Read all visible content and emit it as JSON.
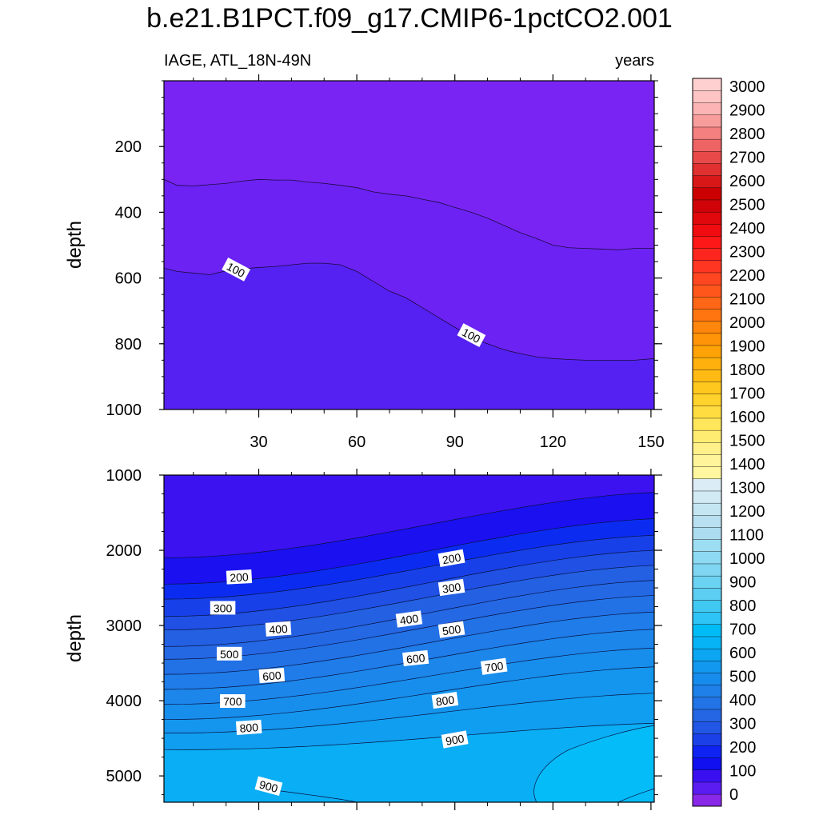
{
  "title": "b.e21.B1PCT.f09_g17.CMIP6-1pctCO2.001",
  "chart_data": [
    {
      "type": "contour",
      "panel": "upper",
      "left_label": "IAGE, ATL_18N-49N",
      "right_label": "years",
      "ylabel": "depth",
      "xlabel": "",
      "xlim": [
        1,
        151
      ],
      "ylim": [
        1000,
        0
      ],
      "xticks": [
        30,
        60,
        90,
        120,
        150
      ],
      "yticks": [
        200,
        400,
        600,
        800,
        1000
      ],
      "bands": [
        {
          "level": 0,
          "color": "#7a24f4"
        },
        {
          "level": 50,
          "color": "#6c22f2"
        },
        {
          "level": 100,
          "color": "#5521f2"
        }
      ],
      "contours": [
        {
          "level": 50,
          "label": "",
          "x": [
            1,
            5,
            10,
            15,
            20,
            25,
            30,
            35,
            40,
            45,
            50,
            55,
            60,
            65,
            70,
            75,
            80,
            85,
            90,
            95,
            100,
            105,
            110,
            115,
            120,
            125,
            130,
            135,
            140,
            145,
            151
          ],
          "y": [
            300,
            318,
            320,
            316,
            312,
            305,
            300,
            302,
            302,
            308,
            312,
            318,
            325,
            338,
            345,
            350,
            360,
            370,
            385,
            400,
            418,
            440,
            462,
            480,
            500,
            508,
            510,
            512,
            514,
            510,
            510
          ]
        },
        {
          "level": 100,
          "label": "100",
          "x": [
            1,
            5,
            10,
            15,
            20,
            25,
            30,
            35,
            40,
            45,
            50,
            55,
            60,
            65,
            70,
            75,
            80,
            85,
            90,
            95,
            100,
            105,
            110,
            115,
            120,
            125,
            130,
            135,
            140,
            145,
            151
          ],
          "y": [
            570,
            580,
            585,
            590,
            578,
            572,
            568,
            565,
            560,
            555,
            555,
            560,
            580,
            610,
            640,
            660,
            690,
            720,
            750,
            780,
            800,
            818,
            830,
            840,
            845,
            848,
            850,
            850,
            850,
            850,
            845
          ]
        }
      ],
      "labels": [
        {
          "text": "100",
          "x": 23,
          "y": 575,
          "angle": 28
        },
        {
          "text": "100",
          "x": 95,
          "y": 775,
          "angle": 28
        }
      ]
    },
    {
      "type": "contour",
      "panel": "lower",
      "ylabel": "depth",
      "xlabel": "",
      "xlim": [
        1,
        151
      ],
      "ylim": [
        5350,
        1000
      ],
      "xticks": [
        30,
        60,
        90,
        120,
        150
      ],
      "yticks": [
        1000,
        2000,
        3000,
        4000,
        5000
      ],
      "bands": [
        {
          "level": 100,
          "color": "#3c12f0"
        },
        {
          "level": 200,
          "color": "#1a10f0"
        },
        {
          "level": 300,
          "color": "#0b2cf0"
        },
        {
          "level": 400,
          "color": "#1840e8"
        },
        {
          "level": 450,
          "color": "#2050e4"
        },
        {
          "level": 500,
          "color": "#2460e2"
        },
        {
          "level": 550,
          "color": "#2468e4"
        },
        {
          "level": 600,
          "color": "#2272e6"
        },
        {
          "level": 650,
          "color": "#1f7ce8"
        },
        {
          "level": 700,
          "color": "#1c86ea"
        },
        {
          "level": 750,
          "color": "#188eec"
        },
        {
          "level": 800,
          "color": "#1496ee"
        },
        {
          "level": 850,
          "color": "#109ef0"
        },
        {
          "level": 900,
          "color": "#0aaef4"
        },
        {
          "level": 950,
          "color": "#04bcf8"
        }
      ],
      "contours": [
        {
          "level": 200,
          "y_left": 2100,
          "y_right": 1230
        },
        {
          "level": 300,
          "y_left": 2450,
          "y_right": 1580
        },
        {
          "level": 400,
          "y_left": 2650,
          "y_right": 1800
        },
        {
          "level": 450,
          "y_left": 2880,
          "y_right": 2000
        },
        {
          "level": 500,
          "y_left": 3060,
          "y_right": 2200
        },
        {
          "level": 550,
          "y_left": 3280,
          "y_right": 2400
        },
        {
          "level": 600,
          "y_left": 3450,
          "y_right": 2600
        },
        {
          "level": 650,
          "y_left": 3650,
          "y_right": 2820
        },
        {
          "level": 700,
          "y_left": 3850,
          "y_right": 3050
        },
        {
          "level": 750,
          "y_left": 4050,
          "y_right": 3300
        },
        {
          "level": 800,
          "y_left": 4250,
          "y_right": 3550
        },
        {
          "level": 850,
          "y_left": 4430,
          "y_right": 3900
        },
        {
          "level": 900,
          "y_left": 4650,
          "y_right": 4300
        }
      ],
      "labels": [
        {
          "text": "200",
          "x": 24,
          "y": 2360,
          "angle": -3
        },
        {
          "text": "200",
          "x": 89,
          "y": 2110,
          "angle": -10
        },
        {
          "text": "300",
          "x": 19,
          "y": 2770,
          "angle": 0
        },
        {
          "text": "300",
          "x": 89,
          "y": 2500,
          "angle": -8
        },
        {
          "text": "400",
          "x": 36,
          "y": 3050,
          "angle": -4
        },
        {
          "text": "400",
          "x": 76,
          "y": 2920,
          "angle": -8
        },
        {
          "text": "500",
          "x": 21,
          "y": 3380,
          "angle": 0
        },
        {
          "text": "500",
          "x": 89,
          "y": 3060,
          "angle": -8
        },
        {
          "text": "600",
          "x": 34,
          "y": 3670,
          "angle": -4
        },
        {
          "text": "600",
          "x": 78,
          "y": 3440,
          "angle": -6
        },
        {
          "text": "700",
          "x": 22,
          "y": 4010,
          "angle": 0
        },
        {
          "text": "700",
          "x": 102,
          "y": 3550,
          "angle": -8
        },
        {
          "text": "800",
          "x": 27,
          "y": 4360,
          "angle": -4
        },
        {
          "text": "800",
          "x": 87,
          "y": 4000,
          "angle": -8
        },
        {
          "text": "900",
          "x": 90,
          "y": 4520,
          "angle": -10
        },
        {
          "text": "900",
          "x": 33,
          "y": 5140,
          "angle": 15
        }
      ]
    },
    {
      "type": "colorbar",
      "levels": [
        0,
        100,
        200,
        300,
        400,
        500,
        600,
        700,
        800,
        900,
        1000,
        1100,
        1200,
        1300,
        1400,
        1500,
        1600,
        1700,
        1800,
        1900,
        2000,
        2100,
        2200,
        2300,
        2400,
        2500,
        2600,
        2700,
        2800,
        2900,
        3000
      ],
      "labels": [
        "0",
        "100",
        "200",
        "300",
        "400",
        "500",
        "600",
        "700",
        "800",
        "900",
        "1000",
        "1100",
        "1200",
        "1300",
        "1400",
        "1500",
        "1600",
        "1700",
        "1800",
        "1900",
        "2000",
        "2100",
        "2200",
        "2300",
        "2400",
        "2500",
        "2600",
        "2700",
        "2800",
        "2900",
        "3000"
      ],
      "colors": [
        "#8a28e8",
        "#5a1cf0",
        "#3a10f0",
        "#1010f0",
        "#0f24f2",
        "#1c40e8",
        "#2256e4",
        "#2466e4",
        "#2274e6",
        "#1e80e8",
        "#188cec",
        "#1298ee",
        "#0ca6f2",
        "#06b4f6",
        "#00bcf6",
        "#2ec4f6",
        "#40c8f2",
        "#5ccef2",
        "#6cd2f2",
        "#80d6f2",
        "#8edaf2",
        "#9ddef2",
        "#acdcf0",
        "#b8e0f0",
        "#c4e6f2",
        "#d2eaf4",
        "#dcecf6",
        "#fff7a0",
        "#fff49a",
        "#fff08a",
        "#ffec70",
        "#ffe65a",
        "#ffdd40",
        "#ffd22c",
        "#ffc81e",
        "#ffbb14",
        "#ffb00c",
        "#ffa206",
        "#ff9408",
        "#ff860c",
        "#ff7610",
        "#ff6616",
        "#ff561c",
        "#ff4620",
        "#ff3622",
        "#ff2620",
        "#ff1818",
        "#f00c10",
        "#e0080c",
        "#d00408",
        "#cc0000",
        "#d81818",
        "#e03030",
        "#e84a4a",
        "#ee6464",
        "#f48080",
        "#f89c9c",
        "#fcb4b4",
        "#ffc4c4",
        "#ffd0d0"
      ]
    }
  ]
}
